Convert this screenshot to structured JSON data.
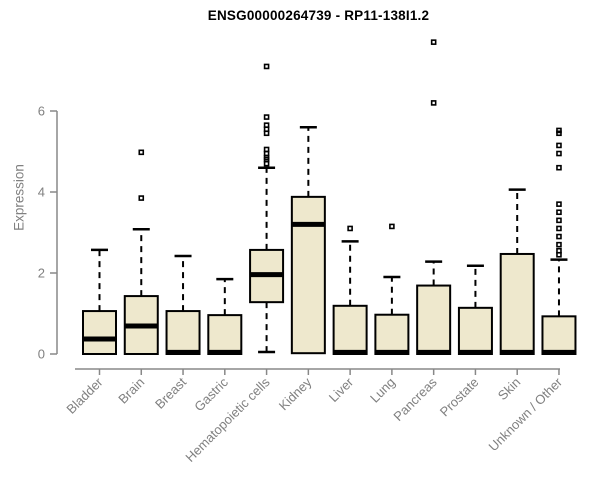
{
  "chart_data": {
    "type": "box",
    "title": "ENSG00000264739 - RP11-138I1.2",
    "ylabel": "Expression",
    "xlabel": "",
    "y_ticks": [
      0,
      2,
      4,
      6
    ],
    "ylim": [
      0,
      7.9
    ],
    "grid": false,
    "legend_position": "none",
    "colors": {
      "box_fill": "#EEE8CD",
      "box_stroke": "#000000",
      "axis": "#888888",
      "tick_label": "#808080",
      "title": "#000000"
    },
    "categories": [
      "Bladder",
      "Brain",
      "Breast",
      "Gastric",
      "Hematopoietic cells",
      "Kidney",
      "Liver",
      "Lung",
      "Pancreas",
      "Prostate",
      "Skin",
      "Unknown / Other"
    ],
    "boxes": [
      {
        "category": "Bladder",
        "q1": 0,
        "median": 0.37,
        "q3": 1.06,
        "whisker_low": 0,
        "whisker_high": 2.57,
        "outliers": []
      },
      {
        "category": "Brain",
        "q1": 0,
        "median": 0.69,
        "q3": 1.43,
        "whisker_low": 0,
        "whisker_high": 3.08,
        "outliers": [
          3.85,
          4.98
        ]
      },
      {
        "category": "Breast",
        "q1": 0,
        "median": 0.04,
        "q3": 1.06,
        "whisker_low": 0,
        "whisker_high": 2.42,
        "outliers": []
      },
      {
        "category": "Gastric",
        "q1": 0,
        "median": 0.04,
        "q3": 0.96,
        "whisker_low": 0,
        "whisker_high": 1.85,
        "outliers": []
      },
      {
        "category": "Hematopoietic cells",
        "q1": 1.28,
        "median": 1.96,
        "q3": 2.57,
        "whisker_low": 0.05,
        "whisker_high": 4.6,
        "outliers": [
          4.7,
          4.8,
          4.85,
          4.95,
          5.05,
          5.45,
          5.55,
          5.65,
          5.85,
          7.1
        ]
      },
      {
        "category": "Kidney",
        "q1": 0.02,
        "median": 3.2,
        "q3": 3.88,
        "whisker_low": 0.02,
        "whisker_high": 5.6,
        "outliers": []
      },
      {
        "category": "Liver",
        "q1": 0,
        "median": 0.04,
        "q3": 1.19,
        "whisker_low": 0,
        "whisker_high": 2.78,
        "outliers": [
          3.1
        ]
      },
      {
        "category": "Lung",
        "q1": 0,
        "median": 0.04,
        "q3": 0.97,
        "whisker_low": 0,
        "whisker_high": 1.9,
        "outliers": [
          3.15
        ]
      },
      {
        "category": "Pancreas",
        "q1": 0,
        "median": 0.04,
        "q3": 1.69,
        "whisker_low": 0,
        "whisker_high": 2.28,
        "outliers": [
          6.2,
          7.7
        ]
      },
      {
        "category": "Prostate",
        "q1": 0,
        "median": 0.04,
        "q3": 1.14,
        "whisker_low": 0,
        "whisker_high": 2.18,
        "outliers": []
      },
      {
        "category": "Skin",
        "q1": 0,
        "median": 0.04,
        "q3": 2.47,
        "whisker_low": 0,
        "whisker_high": 4.06,
        "outliers": []
      },
      {
        "category": "Unknown / Other",
        "q1": 0,
        "median": 0.04,
        "q3": 0.93,
        "whisker_low": 0,
        "whisker_high": 2.33,
        "outliers": [
          2.45,
          2.55,
          2.7,
          2.9,
          3.1,
          3.3,
          3.5,
          3.7,
          4.6,
          4.95,
          5.15,
          5.45,
          5.52
        ]
      }
    ]
  }
}
